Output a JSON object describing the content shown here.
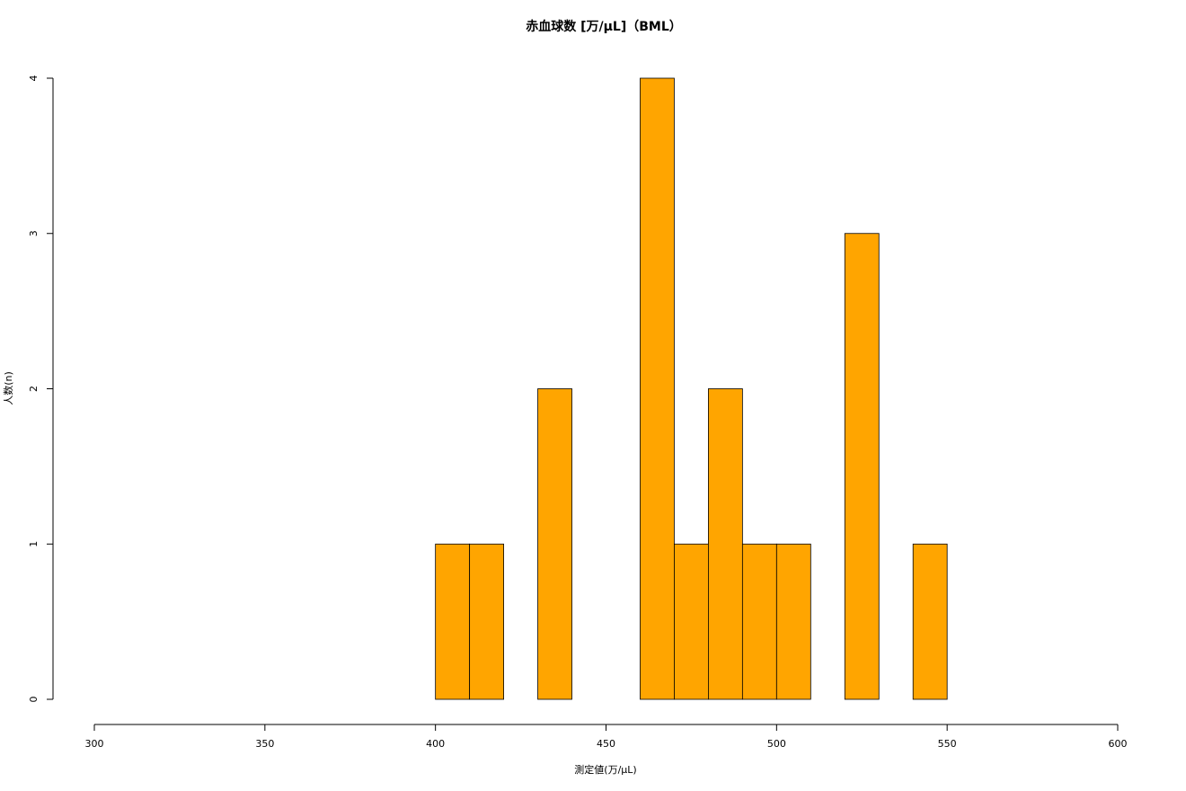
{
  "chart_data": {
    "type": "histogram",
    "title": "赤血球数 [万/μL]（BML）",
    "x_label": "測定値(万/μL)",
    "y_label": "人数(n)",
    "bins": [
      400,
      410,
      420,
      430,
      440,
      450,
      460,
      470,
      480,
      490,
      500,
      510,
      520,
      530,
      540,
      550
    ],
    "counts": [
      1,
      1,
      0,
      2,
      0,
      0,
      4,
      1,
      2,
      1,
      1,
      0,
      3,
      0,
      1
    ],
    "color": "#ffa500",
    "xlim": [
      300,
      600
    ],
    "xticks": [
      300,
      350,
      400,
      450,
      500,
      550,
      600
    ],
    "ylim": [
      0,
      4
    ],
    "yticks": [
      0,
      1,
      2,
      3,
      4
    ]
  }
}
